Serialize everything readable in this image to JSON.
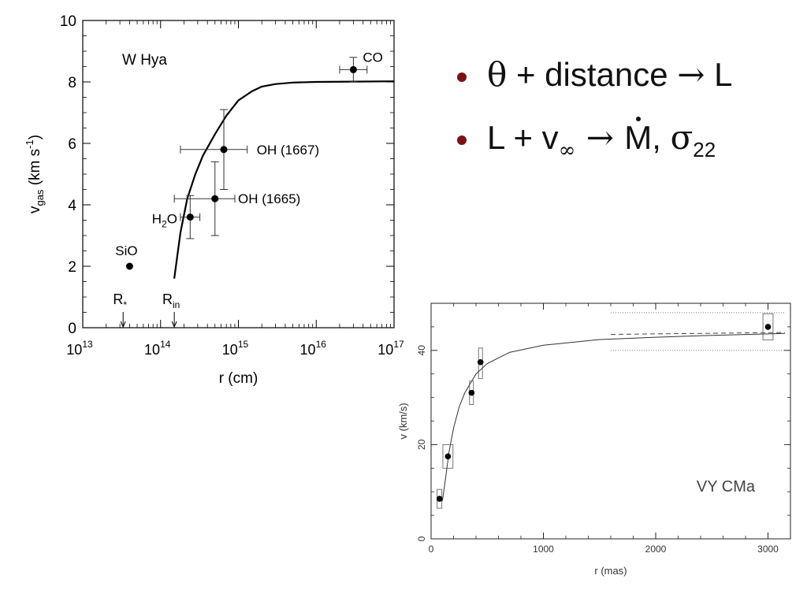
{
  "bullets": {
    "color": "#7a1212",
    "b1": {
      "theta": "θ",
      "text": " + distance ",
      "arrow": "→",
      "end": " L"
    },
    "b2": {
      "l": "L + v",
      "inf": "∞",
      "arrow": " → ",
      "m": "M",
      "comma": ", ",
      "sigma": "σ",
      "sub": "22"
    }
  },
  "chart_data": [
    {
      "type": "scatter",
      "label": "W Hya",
      "xlabel": "r (cm)",
      "ylabel_main": "v",
      "ylabel_sub": "gas",
      "ylabel_units": " (km s",
      "ylabel_exp": "-1",
      "ylabel_close": ")",
      "x_scale": "log",
      "xlim": [
        10000000000000.0,
        1e+17
      ],
      "ylim": [
        0,
        10
      ],
      "x_ticks": [
        {
          "v": 10000000000000.0,
          "base": "10",
          "exp": "13"
        },
        {
          "v": 100000000000000.0,
          "base": "10",
          "exp": "14"
        },
        {
          "v": 1000000000000000.0,
          "base": "10",
          "exp": "15"
        },
        {
          "v": 1e+16,
          "base": "10",
          "exp": "16"
        },
        {
          "v": 1e+17,
          "base": "10",
          "exp": "17"
        }
      ],
      "y_ticks": [
        "0",
        "2",
        "4",
        "6",
        "8",
        "10"
      ],
      "points": [
        {
          "name": "CO",
          "x": 3e+16,
          "y": 8.4,
          "xerr": [
            2e+16,
            4.5e+16
          ],
          "yerr": [
            8.0,
            8.8
          ]
        },
        {
          "name": "OH (1667)",
          "x": 650000000000000.0,
          "y": 5.8,
          "xerr": [
            180000000000000.0,
            1300000000000000.0
          ],
          "yerr": [
            4.5,
            7.1
          ]
        },
        {
          "name": "OH (1665)",
          "x": 500000000000000.0,
          "y": 4.2,
          "xerr": [
            150000000000000.0,
            900000000000000.0
          ],
          "yerr": [
            3.0,
            5.4
          ]
        },
        {
          "name": "H",
          "name_sub": "2",
          "name_end": "O",
          "x": 240000000000000.0,
          "y": 3.6,
          "xerr": [
            180000000000000.0,
            320000000000000.0
          ],
          "yerr": [
            2.9,
            4.3
          ]
        },
        {
          "name": "SiO",
          "x": 40000000000000.0,
          "y": 2.0
        }
      ],
      "markers": [
        {
          "name": "R",
          "sub": "*",
          "x": 33000000000000.0
        },
        {
          "name": "R",
          "sub": "in",
          "x": 150000000000000.0
        }
      ],
      "curve": [
        [
          150000000000000.0,
          1.6
        ],
        [
          180000000000000.0,
          3.1
        ],
        [
          220000000000000.0,
          4.2
        ],
        [
          280000000000000.0,
          5.0
        ],
        [
          350000000000000.0,
          5.6
        ],
        [
          500000000000000.0,
          6.3
        ],
        [
          700000000000000.0,
          6.9
        ],
        [
          1000000000000000.0,
          7.4
        ],
        [
          1500000000000000.0,
          7.7
        ],
        [
          2000000000000000.0,
          7.85
        ],
        [
          3000000000000000.0,
          7.93
        ],
        [
          5000000000000000.0,
          7.98
        ],
        [
          1e+16,
          8.0
        ],
        [
          3e+16,
          8.01
        ],
        [
          1e+17,
          8.02
        ]
      ]
    },
    {
      "type": "scatter",
      "label": "VY CMa",
      "xlabel": "r (mas)",
      "ylabel": "v (km/s)",
      "xlim": [
        0,
        3200
      ],
      "ylim": [
        0,
        50
      ],
      "x_ticks": [
        "0",
        "1000",
        "2000",
        "3000"
      ],
      "y_ticks": [
        "0",
        "20",
        "40"
      ],
      "points": [
        {
          "x": 75,
          "y": 8.5,
          "box": [
            8,
            2
          ]
        },
        {
          "x": 150,
          "y": 17.5,
          "box": [
            90,
            2.5
          ]
        },
        {
          "x": 360,
          "y": 31,
          "yerr": [
            28.5,
            33.5
          ]
        },
        {
          "x": 440,
          "y": 37.5,
          "yerr": [
            34,
            40.5
          ]
        },
        {
          "x": 3000,
          "y": 45,
          "box": [
            90,
            2.8
          ]
        }
      ],
      "curve": [
        [
          100,
          8
        ],
        [
          130,
          13
        ],
        [
          160,
          18.5
        ],
        [
          200,
          23.5
        ],
        [
          250,
          28
        ],
        [
          300,
          31
        ],
        [
          400,
          35
        ],
        [
          500,
          37.2
        ],
        [
          700,
          39.6
        ],
        [
          1000,
          41.1
        ],
        [
          1500,
          42.3
        ],
        [
          2000,
          42.8
        ],
        [
          2500,
          43.2
        ],
        [
          3000,
          43.5
        ],
        [
          3150,
          43.6
        ]
      ],
      "dashed": [
        [
          1600,
          43.4
        ],
        [
          3150,
          43.8
        ]
      ],
      "dotted": [
        [
          1600,
          48
        ],
        [
          3150,
          48
        ],
        [
          1600,
          40
        ],
        [
          3150,
          40
        ]
      ]
    }
  ]
}
